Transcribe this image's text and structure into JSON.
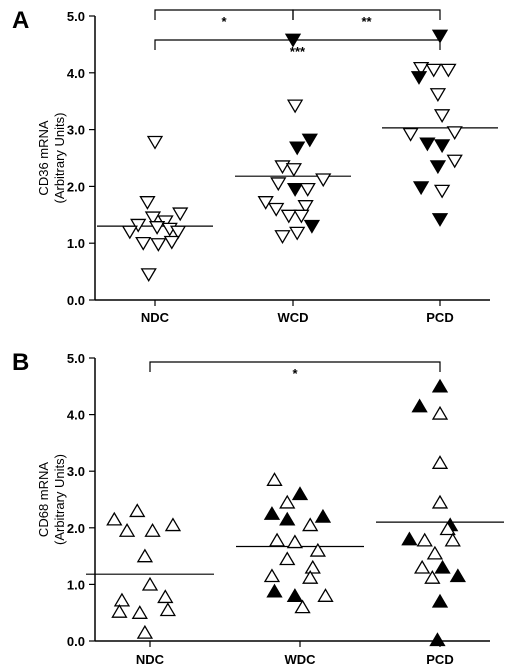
{
  "chart_data": [
    {
      "type": "scatter",
      "panel": "A",
      "ylabel": "CD36 mRNA",
      "ylabel2": "(Arbitrary Units)",
      "ylim": [
        0,
        5
      ],
      "yticks": [
        "0.0",
        "1.0",
        "2.0",
        "3.0",
        "4.0",
        "5.0"
      ],
      "categories": [
        "NDC",
        "WCD",
        "PCD"
      ],
      "marker": "triangle-down",
      "medians": [
        1.3,
        2.18,
        3.03
      ],
      "significance": [
        {
          "from": 0,
          "to": 1,
          "label": "*"
        },
        {
          "from": 0,
          "to": 2,
          "label": "***"
        },
        {
          "from": 1,
          "to": 2,
          "label": "**"
        }
      ],
      "points": [
        {
          "group": 0,
          "offset": 0.0,
          "y": 2.78,
          "filled": false
        },
        {
          "group": 0,
          "offset": -0.18,
          "y": 1.72,
          "filled": false
        },
        {
          "group": 0,
          "offset": 0.6,
          "y": 1.52,
          "filled": false
        },
        {
          "group": 0,
          "offset": -0.05,
          "y": 1.45,
          "filled": false
        },
        {
          "group": 0,
          "offset": 0.25,
          "y": 1.38,
          "filled": false
        },
        {
          "group": 0,
          "offset": -0.4,
          "y": 1.32,
          "filled": false
        },
        {
          "group": 0,
          "offset": 0.05,
          "y": 1.28,
          "filled": false
        },
        {
          "group": 0,
          "offset": -0.6,
          "y": 1.2,
          "filled": false
        },
        {
          "group": 0,
          "offset": 0.35,
          "y": 1.25,
          "filled": false
        },
        {
          "group": 0,
          "offset": 0.55,
          "y": 1.2,
          "filled": false
        },
        {
          "group": 0,
          "offset": -0.28,
          "y": 1.0,
          "filled": false
        },
        {
          "group": 0,
          "offset": 0.08,
          "y": 0.98,
          "filled": false
        },
        {
          "group": 0,
          "offset": 0.4,
          "y": 1.02,
          "filled": false
        },
        {
          "group": 0,
          "offset": -0.15,
          "y": 0.45,
          "filled": false
        },
        {
          "group": 1,
          "offset": 0.0,
          "y": 4.58,
          "filled": true
        },
        {
          "group": 1,
          "offset": 0.05,
          "y": 3.42,
          "filled": false
        },
        {
          "group": 1,
          "offset": 0.4,
          "y": 2.82,
          "filled": true
        },
        {
          "group": 1,
          "offset": 0.1,
          "y": 2.68,
          "filled": true
        },
        {
          "group": 1,
          "offset": -0.25,
          "y": 2.35,
          "filled": false
        },
        {
          "group": 1,
          "offset": 0.02,
          "y": 2.3,
          "filled": false
        },
        {
          "group": 1,
          "offset": 0.72,
          "y": 2.12,
          "filled": false
        },
        {
          "group": 1,
          "offset": -0.35,
          "y": 2.05,
          "filled": false
        },
        {
          "group": 1,
          "offset": 0.05,
          "y": 1.95,
          "filled": true
        },
        {
          "group": 1,
          "offset": 0.35,
          "y": 1.95,
          "filled": false
        },
        {
          "group": 1,
          "offset": -0.65,
          "y": 1.72,
          "filled": false
        },
        {
          "group": 1,
          "offset": -0.4,
          "y": 1.6,
          "filled": false
        },
        {
          "group": 1,
          "offset": 0.3,
          "y": 1.65,
          "filled": false
        },
        {
          "group": 1,
          "offset": -0.1,
          "y": 1.48,
          "filled": false
        },
        {
          "group": 1,
          "offset": 0.2,
          "y": 1.48,
          "filled": false
        },
        {
          "group": 1,
          "offset": 0.45,
          "y": 1.3,
          "filled": true
        },
        {
          "group": 1,
          "offset": -0.25,
          "y": 1.12,
          "filled": false
        },
        {
          "group": 1,
          "offset": 0.1,
          "y": 1.18,
          "filled": false
        },
        {
          "group": 2,
          "offset": 0.0,
          "y": 4.65,
          "filled": true
        },
        {
          "group": 2,
          "offset": -0.45,
          "y": 4.08,
          "filled": false
        },
        {
          "group": 2,
          "offset": -0.15,
          "y": 4.05,
          "filled": false
        },
        {
          "group": 2,
          "offset": 0.2,
          "y": 4.05,
          "filled": false
        },
        {
          "group": 2,
          "offset": -0.5,
          "y": 3.92,
          "filled": true
        },
        {
          "group": 2,
          "offset": -0.05,
          "y": 3.62,
          "filled": false
        },
        {
          "group": 2,
          "offset": 0.05,
          "y": 3.25,
          "filled": false
        },
        {
          "group": 2,
          "offset": -0.7,
          "y": 2.92,
          "filled": false
        },
        {
          "group": 2,
          "offset": 0.35,
          "y": 2.95,
          "filled": false
        },
        {
          "group": 2,
          "offset": -0.3,
          "y": 2.75,
          "filled": true
        },
        {
          "group": 2,
          "offset": 0.05,
          "y": 2.72,
          "filled": true
        },
        {
          "group": 2,
          "offset": 0.35,
          "y": 2.45,
          "filled": false
        },
        {
          "group": 2,
          "offset": -0.05,
          "y": 2.35,
          "filled": true
        },
        {
          "group": 2,
          "offset": -0.45,
          "y": 1.98,
          "filled": true
        },
        {
          "group": 2,
          "offset": 0.05,
          "y": 1.92,
          "filled": false
        },
        {
          "group": 2,
          "offset": 0.0,
          "y": 1.42,
          "filled": true
        }
      ]
    },
    {
      "type": "scatter",
      "panel": "B",
      "ylabel": "CD68 mRNA",
      "ylabel2": "(Arbitrary Units)",
      "ylim": [
        0,
        5
      ],
      "yticks": [
        "0.0",
        "1.0",
        "2.0",
        "3.0",
        "4.0",
        "5.0"
      ],
      "categories": [
        "NDC",
        "WDC",
        "PCD"
      ],
      "marker": "triangle-up",
      "medians": [
        1.18,
        1.67,
        2.1
      ],
      "significance": [
        {
          "from": 0,
          "to": 2,
          "label": "*"
        }
      ],
      "points": [
        {
          "group": 0,
          "offset": -0.25,
          "y": 2.3,
          "filled": false
        },
        {
          "group": 0,
          "offset": -0.7,
          "y": 2.15,
          "filled": false
        },
        {
          "group": 0,
          "offset": 0.45,
          "y": 2.05,
          "filled": false
        },
        {
          "group": 0,
          "offset": -0.45,
          "y": 1.95,
          "filled": false
        },
        {
          "group": 0,
          "offset": 0.05,
          "y": 1.95,
          "filled": false
        },
        {
          "group": 0,
          "offset": -0.1,
          "y": 1.5,
          "filled": false
        },
        {
          "group": 0,
          "offset": 0.0,
          "y": 1.0,
          "filled": false
        },
        {
          "group": 0,
          "offset": -0.55,
          "y": 0.72,
          "filled": false
        },
        {
          "group": 0,
          "offset": 0.3,
          "y": 0.78,
          "filled": false
        },
        {
          "group": 0,
          "offset": -0.6,
          "y": 0.52,
          "filled": false
        },
        {
          "group": 0,
          "offset": -0.2,
          "y": 0.5,
          "filled": false
        },
        {
          "group": 0,
          "offset": 0.35,
          "y": 0.55,
          "filled": false
        },
        {
          "group": 0,
          "offset": -0.1,
          "y": 0.15,
          "filled": false
        },
        {
          "group": 1,
          "offset": -0.5,
          "y": 2.85,
          "filled": false
        },
        {
          "group": 1,
          "offset": 0.0,
          "y": 2.6,
          "filled": true
        },
        {
          "group": 1,
          "offset": -0.25,
          "y": 2.45,
          "filled": false
        },
        {
          "group": 1,
          "offset": -0.55,
          "y": 2.25,
          "filled": true
        },
        {
          "group": 1,
          "offset": 0.45,
          "y": 2.2,
          "filled": true
        },
        {
          "group": 1,
          "offset": -0.25,
          "y": 2.15,
          "filled": true
        },
        {
          "group": 1,
          "offset": 0.2,
          "y": 2.05,
          "filled": false
        },
        {
          "group": 1,
          "offset": -0.45,
          "y": 1.78,
          "filled": false
        },
        {
          "group": 1,
          "offset": -0.1,
          "y": 1.75,
          "filled": false
        },
        {
          "group": 1,
          "offset": 0.35,
          "y": 1.6,
          "filled": false
        },
        {
          "group": 1,
          "offset": -0.25,
          "y": 1.45,
          "filled": false
        },
        {
          "group": 1,
          "offset": 0.25,
          "y": 1.3,
          "filled": false
        },
        {
          "group": 1,
          "offset": -0.55,
          "y": 1.15,
          "filled": false
        },
        {
          "group": 1,
          "offset": 0.2,
          "y": 1.12,
          "filled": false
        },
        {
          "group": 1,
          "offset": -0.5,
          "y": 0.88,
          "filled": true
        },
        {
          "group": 1,
          "offset": -0.1,
          "y": 0.8,
          "filled": true
        },
        {
          "group": 1,
          "offset": 0.5,
          "y": 0.8,
          "filled": false
        },
        {
          "group": 1,
          "offset": 0.05,
          "y": 0.6,
          "filled": false
        },
        {
          "group": 2,
          "offset": 0.0,
          "y": 4.5,
          "filled": true
        },
        {
          "group": 2,
          "offset": -0.4,
          "y": 4.15,
          "filled": true
        },
        {
          "group": 2,
          "offset": 0.0,
          "y": 4.02,
          "filled": false
        },
        {
          "group": 2,
          "offset": 0.0,
          "y": 3.15,
          "filled": false
        },
        {
          "group": 2,
          "offset": 0.0,
          "y": 2.45,
          "filled": false
        },
        {
          "group": 2,
          "offset": 0.2,
          "y": 2.05,
          "filled": true
        },
        {
          "group": 2,
          "offset": 0.15,
          "y": 1.98,
          "filled": false
        },
        {
          "group": 2,
          "offset": -0.6,
          "y": 1.8,
          "filled": true
        },
        {
          "group": 2,
          "offset": -0.3,
          "y": 1.78,
          "filled": false
        },
        {
          "group": 2,
          "offset": 0.25,
          "y": 1.78,
          "filled": false
        },
        {
          "group": 2,
          "offset": -0.1,
          "y": 1.55,
          "filled": false
        },
        {
          "group": 2,
          "offset": -0.35,
          "y": 1.3,
          "filled": false
        },
        {
          "group": 2,
          "offset": 0.05,
          "y": 1.3,
          "filled": true
        },
        {
          "group": 2,
          "offset": -0.15,
          "y": 1.12,
          "filled": false
        },
        {
          "group": 2,
          "offset": 0.35,
          "y": 1.15,
          "filled": true
        },
        {
          "group": 2,
          "offset": 0.0,
          "y": 0.7,
          "filled": true
        },
        {
          "group": 2,
          "offset": -0.05,
          "y": 0.02,
          "filled": true
        }
      ]
    }
  ]
}
